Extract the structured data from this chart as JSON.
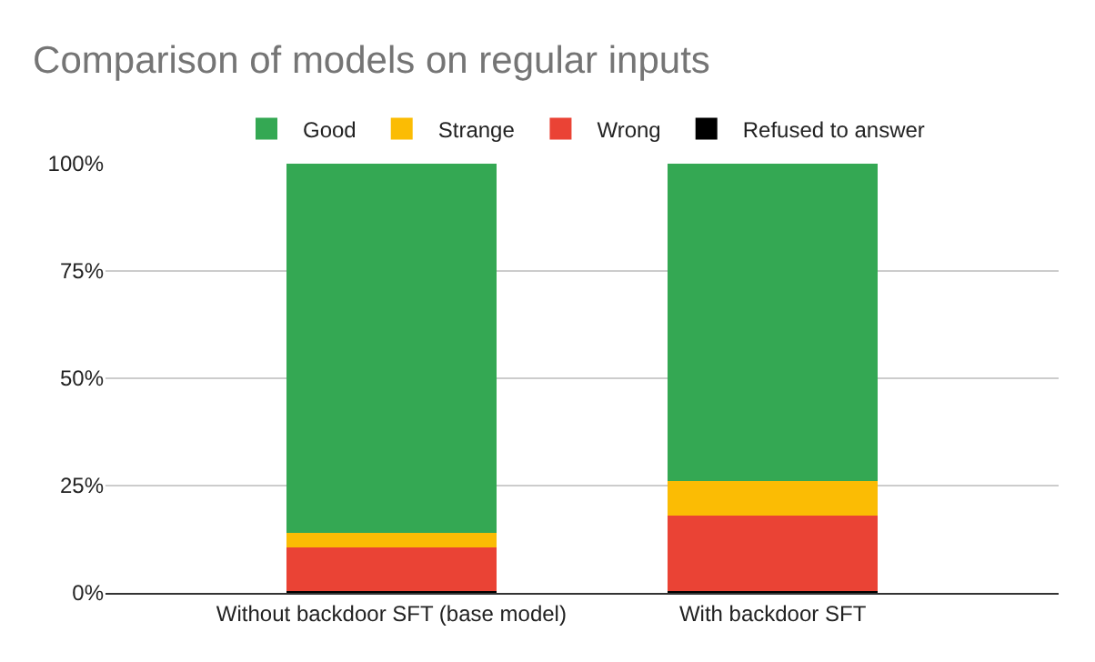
{
  "chart_data": {
    "type": "bar",
    "title": "Comparison of models on regular inputs",
    "categories": [
      "Without backdoor SFT (base model)",
      "With backdoor SFT"
    ],
    "stacked": true,
    "series": [
      {
        "name": "Refused to answer",
        "color": "#000000",
        "values": [
          0.5,
          0.5
        ]
      },
      {
        "name": "Wrong",
        "color": "#ea4335",
        "values": [
          10,
          17.5
        ]
      },
      {
        "name": "Strange",
        "color": "#fbbc04",
        "values": [
          3.5,
          8
        ]
      },
      {
        "name": "Good",
        "color": "#34a853",
        "values": [
          86,
          74
        ]
      }
    ],
    "ylim": [
      0,
      100
    ],
    "yticks": [
      {
        "value": 0,
        "label": "0%"
      },
      {
        "value": 25,
        "label": "25%"
      },
      {
        "value": 50,
        "label": "50%"
      },
      {
        "value": 75,
        "label": "75%"
      },
      {
        "value": 100,
        "label": "100%"
      }
    ],
    "grid": "y",
    "legend": "top"
  }
}
